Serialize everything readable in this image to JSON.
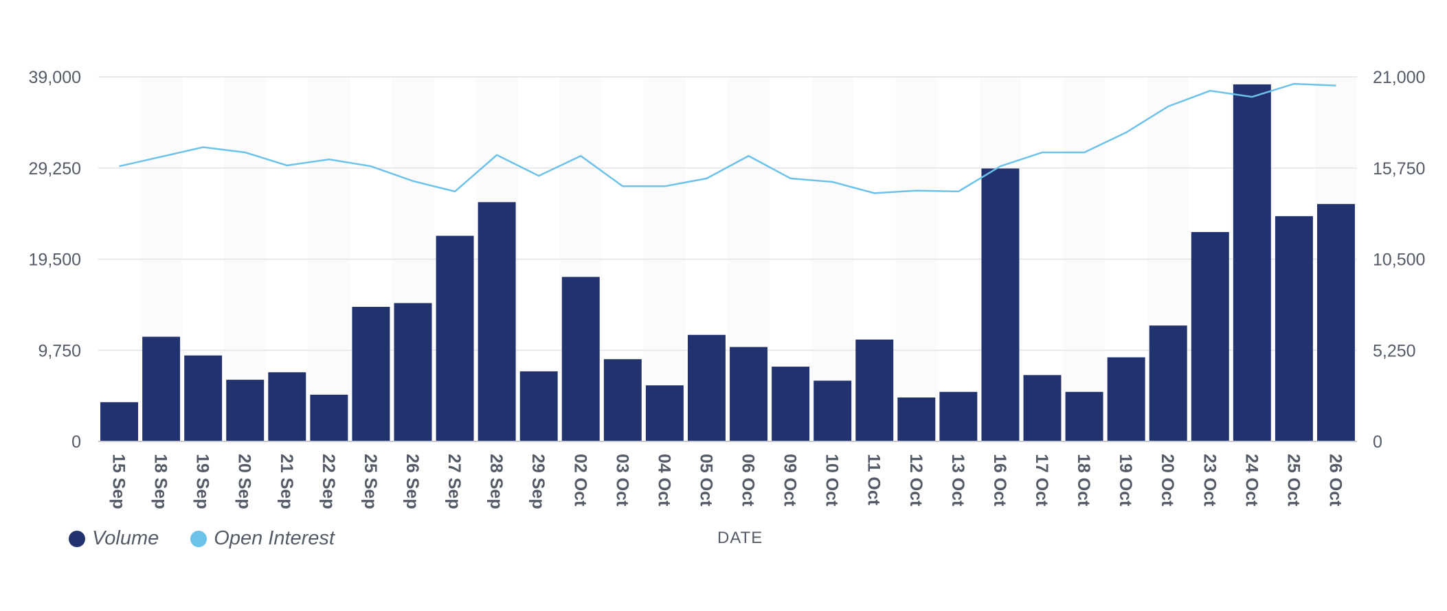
{
  "chart_data": {
    "type": "bar",
    "xlabel": "DATE",
    "categories": [
      "15 Sep",
      "18 Sep",
      "19 Sep",
      "20 Sep",
      "21 Sep",
      "22 Sep",
      "25 Sep",
      "26 Sep",
      "27 Sep",
      "28 Sep",
      "29 Sep",
      "02 Oct",
      "03 Oct",
      "04 Oct",
      "05 Oct",
      "06 Oct",
      "09 Oct",
      "10 Oct",
      "11 Oct",
      "12 Oct",
      "13 Oct",
      "16 Oct",
      "17 Oct",
      "18 Oct",
      "19 Oct",
      "20 Oct",
      "23 Oct",
      "24 Oct",
      "25 Oct",
      "26 Oct"
    ],
    "series": [
      {
        "name": "Volume",
        "type": "bar",
        "axis": "left",
        "color": "#22326f",
        "values": [
          4200,
          11200,
          9200,
          6600,
          7400,
          5000,
          14400,
          14800,
          22000,
          25600,
          7500,
          17600,
          8800,
          6000,
          11400,
          10100,
          8000,
          6500,
          10900,
          4700,
          5300,
          29200,
          7100,
          5300,
          9000,
          12400,
          22400,
          38200,
          24100,
          25400
        ]
      },
      {
        "name": "Open Interest",
        "type": "line",
        "axis": "right",
        "color": "#6cc2ea",
        "values": [
          15850,
          16400,
          16950,
          16650,
          15900,
          16250,
          15850,
          15000,
          14400,
          16500,
          15300,
          16450,
          14700,
          14700,
          15150,
          16450,
          15150,
          14950,
          14300,
          14450,
          14400,
          15850,
          16650,
          16650,
          17800,
          19300,
          20200,
          19850,
          20600,
          20500
        ]
      }
    ],
    "y_left": {
      "ylim": [
        0,
        39000
      ],
      "ticks": [
        "0",
        "9,750",
        "19,500",
        "29,250",
        "39,000"
      ],
      "tick_values": [
        0,
        9750,
        19500,
        29250,
        39000
      ]
    },
    "y_right": {
      "ylim": [
        0,
        21000
      ],
      "ticks": [
        "0",
        "5,250",
        "10,500",
        "15,750",
        "21,000"
      ],
      "tick_values": [
        0,
        5250,
        10500,
        15750,
        21000
      ]
    },
    "grid": true,
    "legend_position": "bottom-left"
  },
  "legend": {
    "volume_label": "Volume",
    "volume_color": "#22326f",
    "oi_label": "Open Interest",
    "oi_color": "#6cc2ea"
  }
}
